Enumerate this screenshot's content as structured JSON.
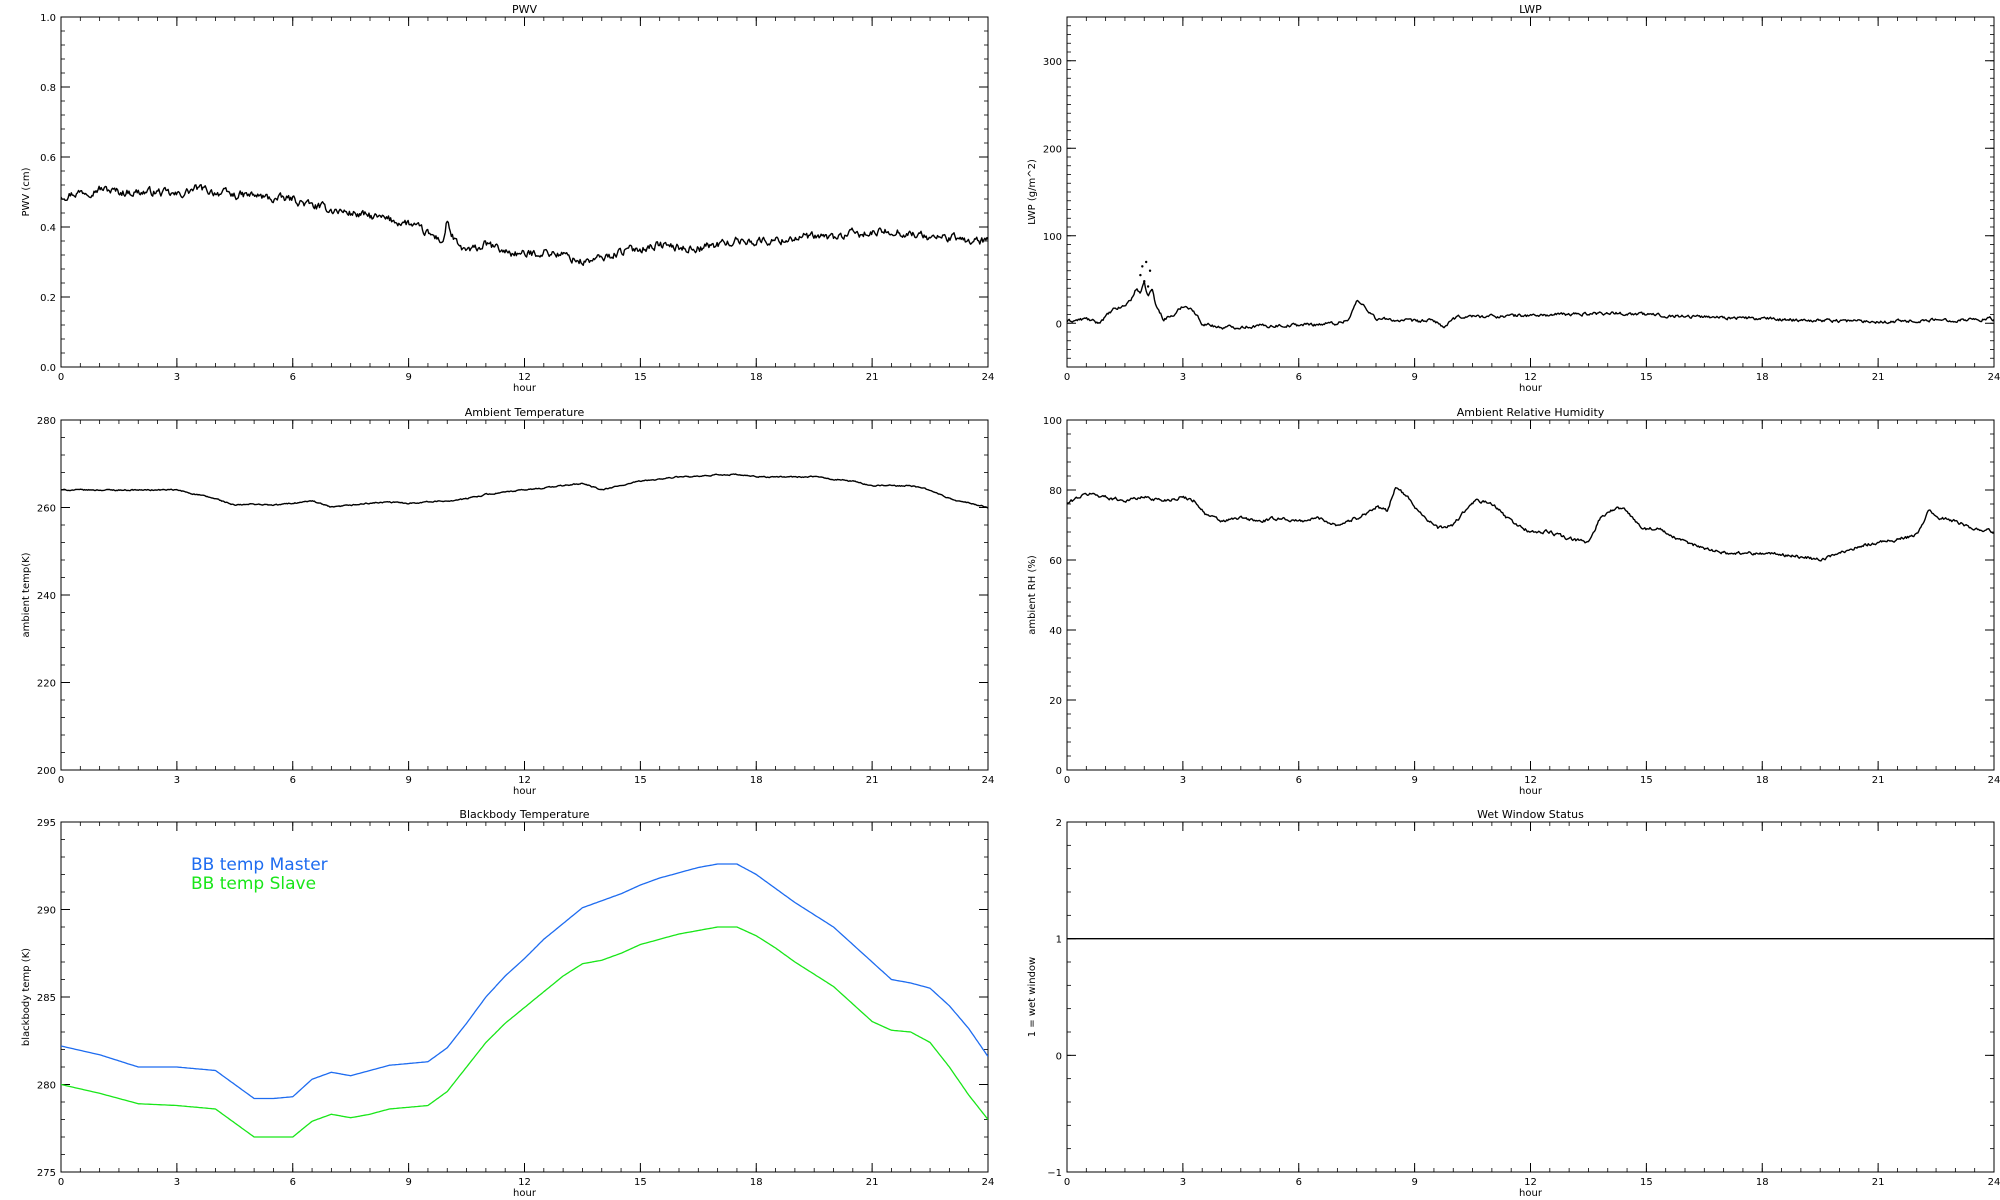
{
  "chart_data": [
    {
      "type": "line",
      "title": "PWV",
      "xlabel": "hour",
      "ylabel": "PWV (cm)",
      "xlim": [
        0,
        24
      ],
      "ylim": [
        0.0,
        1.0
      ],
      "xticks": [
        0,
        3,
        6,
        9,
        12,
        15,
        18,
        21,
        24
      ],
      "yticks": [
        0.0,
        0.2,
        0.4,
        0.6,
        0.8,
        1.0
      ],
      "ytick_labels": [
        "0.0",
        "0.2",
        "0.4",
        "0.6",
        "0.8",
        "1.0"
      ],
      "grid": false,
      "series": [
        {
          "color": "#000000",
          "style": "noisy",
          "noise": 0.012,
          "x": [
            0,
            0.5,
            1,
            1.5,
            2,
            2.5,
            3,
            3.5,
            4,
            4.5,
            5,
            5.5,
            6,
            6.5,
            7,
            7.5,
            8,
            8.5,
            9,
            9.5,
            9.9,
            10,
            10.1,
            10.3,
            10.6,
            11,
            11.5,
            12,
            12.5,
            13,
            13.5,
            14,
            14.5,
            15,
            15.5,
            16,
            16.5,
            17,
            17.5,
            18,
            18.5,
            19,
            19.5,
            20,
            20.5,
            21,
            21.5,
            22,
            22.5,
            23,
            23.5,
            24
          ],
          "y": [
            0.49,
            0.5,
            0.51,
            0.5,
            0.5,
            0.5,
            0.49,
            0.51,
            0.5,
            0.49,
            0.49,
            0.48,
            0.48,
            0.46,
            0.45,
            0.44,
            0.43,
            0.42,
            0.41,
            0.38,
            0.36,
            0.42,
            0.38,
            0.34,
            0.33,
            0.35,
            0.33,
            0.32,
            0.33,
            0.32,
            0.3,
            0.31,
            0.33,
            0.34,
            0.35,
            0.34,
            0.34,
            0.35,
            0.36,
            0.36,
            0.36,
            0.37,
            0.37,
            0.37,
            0.38,
            0.38,
            0.39,
            0.38,
            0.37,
            0.37,
            0.36,
            0.36
          ]
        }
      ]
    },
    {
      "type": "line",
      "title": "LWP",
      "xlabel": "hour",
      "ylabel": "LWP (g/m^2)",
      "xlim": [
        0,
        24
      ],
      "ylim": [
        -50,
        350
      ],
      "xticks": [
        0,
        3,
        6,
        9,
        12,
        15,
        18,
        21,
        24
      ],
      "yticks": [
        0,
        100,
        200,
        300
      ],
      "grid": false,
      "series": [
        {
          "color": "#000000",
          "style": "noisy",
          "noise": 2,
          "x": [
            0,
            0.5,
            0.8,
            1.2,
            1.5,
            1.7,
            1.8,
            1.9,
            2.0,
            2.1,
            2.2,
            2.3,
            2.5,
            2.8,
            3.0,
            3.2,
            3.5,
            4,
            5,
            6,
            7,
            7.3,
            7.5,
            7.7,
            8,
            9,
            9.5,
            9.8,
            10,
            10.3,
            11,
            12,
            13,
            14,
            15,
            16,
            17,
            18,
            19,
            20,
            21,
            22,
            23,
            24
          ],
          "y": [
            2,
            5,
            0,
            15,
            20,
            30,
            40,
            35,
            45,
            30,
            40,
            20,
            5,
            10,
            20,
            18,
            0,
            -5,
            -3,
            -2,
            0,
            5,
            25,
            20,
            5,
            2,
            3,
            -5,
            5,
            8,
            8,
            9,
            10,
            12,
            10,
            8,
            7,
            5,
            4,
            3,
            2,
            3,
            4,
            5
          ]
        },
        {
          "color": "#000000",
          "style": "dots",
          "x": [
            1.9,
            1.95,
            2.0,
            2.05,
            2.1,
            2.15,
            2.2
          ],
          "y": [
            55,
            65,
            48,
            70,
            42,
            60,
            38
          ]
        }
      ]
    },
    {
      "type": "line",
      "title": "Ambient Temperature",
      "xlabel": "hour",
      "ylabel": "ambient temp(K)",
      "xlim": [
        0,
        24
      ],
      "ylim": [
        200,
        280
      ],
      "xticks": [
        0,
        3,
        6,
        9,
        12,
        15,
        18,
        21,
        24
      ],
      "yticks": [
        200,
        220,
        240,
        260,
        280
      ],
      "grid": false,
      "series": [
        {
          "color": "#000000",
          "style": "noisy",
          "noise": 0.15,
          "x": [
            0,
            1,
            2,
            3,
            3.5,
            4,
            4.5,
            5,
            5.5,
            6,
            6.5,
            7,
            7.5,
            8,
            8.5,
            9,
            9.5,
            10,
            10.5,
            11,
            11.5,
            12,
            12.5,
            13,
            13.5,
            14,
            14.5,
            15,
            15.5,
            16,
            16.5,
            17,
            17.5,
            18,
            18.5,
            19,
            19.5,
            20,
            20.5,
            21,
            21.5,
            22,
            22.5,
            23,
            23.5,
            24
          ],
          "y": [
            264,
            264,
            264,
            264,
            263,
            262,
            260.5,
            260.8,
            260.5,
            261,
            261.5,
            260,
            260.5,
            261,
            261.2,
            261,
            261.3,
            261.5,
            262,
            263,
            263.5,
            264,
            264.5,
            265,
            265.5,
            264,
            265,
            266,
            266.5,
            267,
            267,
            267.5,
            267.5,
            267,
            267,
            267,
            267,
            266.5,
            266,
            265,
            265,
            265,
            264,
            262,
            261,
            260
          ]
        }
      ]
    },
    {
      "type": "line",
      "title": "Ambient Relative Humidity",
      "xlabel": "hour",
      "ylabel": "ambient RH (%)",
      "xlim": [
        0,
        24
      ],
      "ylim": [
        0,
        100
      ],
      "xticks": [
        0,
        3,
        6,
        9,
        12,
        15,
        18,
        21,
        24
      ],
      "yticks": [
        0,
        20,
        40,
        60,
        80,
        100
      ],
      "grid": false,
      "series": [
        {
          "color": "#000000",
          "style": "noisy",
          "noise": 0.5,
          "x": [
            0,
            0.3,
            0.6,
            1,
            1.5,
            2,
            2.5,
            3,
            3.3,
            3.6,
            4,
            4.5,
            5,
            5.5,
            6,
            6.5,
            7,
            7.5,
            8,
            8.3,
            8.5,
            8.8,
            9.2,
            9.6,
            10,
            10.3,
            10.6,
            11,
            11.5,
            12,
            12.5,
            13,
            13.5,
            13.8,
            14.2,
            14.5,
            14.8,
            15,
            15.3,
            15.6,
            16,
            17,
            18,
            19,
            19.5,
            20,
            20.5,
            21,
            21.5,
            22,
            22.3,
            22.6,
            23,
            23.5,
            24
          ],
          "y": [
            76,
            78,
            79,
            78,
            77,
            78,
            77,
            78,
            77,
            73,
            71,
            72,
            71,
            72,
            71,
            72,
            70,
            72,
            75,
            74,
            81,
            78,
            73,
            69,
            70,
            74,
            77,
            76,
            71,
            68,
            68,
            66,
            65,
            72,
            75,
            74,
            70,
            69,
            69,
            67,
            65,
            62,
            62,
            61,
            60,
            62,
            64,
            65,
            66,
            67,
            74,
            72,
            71,
            69,
            68
          ]
        }
      ]
    },
    {
      "type": "line",
      "title": "Blackbody Temperature",
      "xlabel": "hour",
      "ylabel": "blackbody temp (K)",
      "xlim": [
        0,
        24
      ],
      "ylim": [
        275,
        295
      ],
      "xticks": [
        0,
        3,
        6,
        9,
        12,
        15,
        18,
        21,
        24
      ],
      "yticks": [
        275,
        280,
        285,
        290,
        295
      ],
      "grid": false,
      "legend": "top-left",
      "series": [
        {
          "name": "BB temp Master",
          "color": "#1e6cf0",
          "style": "smooth",
          "x": [
            0,
            1,
            2,
            3,
            4,
            4.5,
            5,
            5.5,
            6,
            6.5,
            7,
            7.5,
            8,
            8.5,
            9,
            9.5,
            10,
            10.5,
            11,
            11.5,
            12,
            12.5,
            13,
            13.5,
            14,
            14.5,
            15,
            15.5,
            16,
            16.5,
            17,
            17.5,
            18,
            18.5,
            19,
            19.5,
            20,
            20.5,
            21,
            21.5,
            22,
            22.5,
            23,
            23.5,
            24
          ],
          "y": [
            282.2,
            281.7,
            281.0,
            281.0,
            280.8,
            280.0,
            279.2,
            279.2,
            279.3,
            280.3,
            280.7,
            280.5,
            280.8,
            281.1,
            281.2,
            281.3,
            282.1,
            283.5,
            285.0,
            286.2,
            287.2,
            288.3,
            289.2,
            290.1,
            290.5,
            290.9,
            291.4,
            291.8,
            292.1,
            292.4,
            292.6,
            292.6,
            292.0,
            291.2,
            290.4,
            289.7,
            289.0,
            288.0,
            287.0,
            286.0,
            285.8,
            285.5,
            284.5,
            283.2,
            281.6
          ]
        },
        {
          "name": "BB temp Slave",
          "color": "#19e619",
          "style": "smooth",
          "x": [
            0,
            1,
            2,
            3,
            4,
            4.5,
            5,
            5.5,
            6,
            6.5,
            7,
            7.5,
            8,
            8.5,
            9,
            9.5,
            10,
            10.5,
            11,
            11.5,
            12,
            12.5,
            13,
            13.5,
            14,
            14.5,
            15,
            15.5,
            16,
            16.5,
            17,
            17.5,
            18,
            18.5,
            19,
            19.5,
            20,
            20.5,
            21,
            21.5,
            22,
            22.5,
            23,
            23.5,
            24
          ],
          "y": [
            280.0,
            279.5,
            278.9,
            278.8,
            278.6,
            277.8,
            277.0,
            277.0,
            277.0,
            277.9,
            278.3,
            278.1,
            278.3,
            278.6,
            278.7,
            278.8,
            279.6,
            281.0,
            282.4,
            283.5,
            284.4,
            285.3,
            286.2,
            286.9,
            287.1,
            287.5,
            288.0,
            288.3,
            288.6,
            288.8,
            289.0,
            289.0,
            288.5,
            287.8,
            287.0,
            286.3,
            285.6,
            284.6,
            283.6,
            283.1,
            283.0,
            282.4,
            281.0,
            279.4,
            278.0
          ]
        }
      ]
    },
    {
      "type": "line",
      "title": "Wet Window Status",
      "xlabel": "hour",
      "ylabel": "1 = wet window",
      "xlim": [
        0,
        24
      ],
      "ylim": [
        -1,
        2
      ],
      "xticks": [
        0,
        3,
        6,
        9,
        12,
        15,
        18,
        21,
        24
      ],
      "yticks": [
        -1,
        0,
        1,
        2
      ],
      "grid": false,
      "series": [
        {
          "color": "#000000",
          "style": "smooth",
          "x": [
            0,
            24
          ],
          "y": [
            1,
            1
          ]
        }
      ]
    }
  ]
}
